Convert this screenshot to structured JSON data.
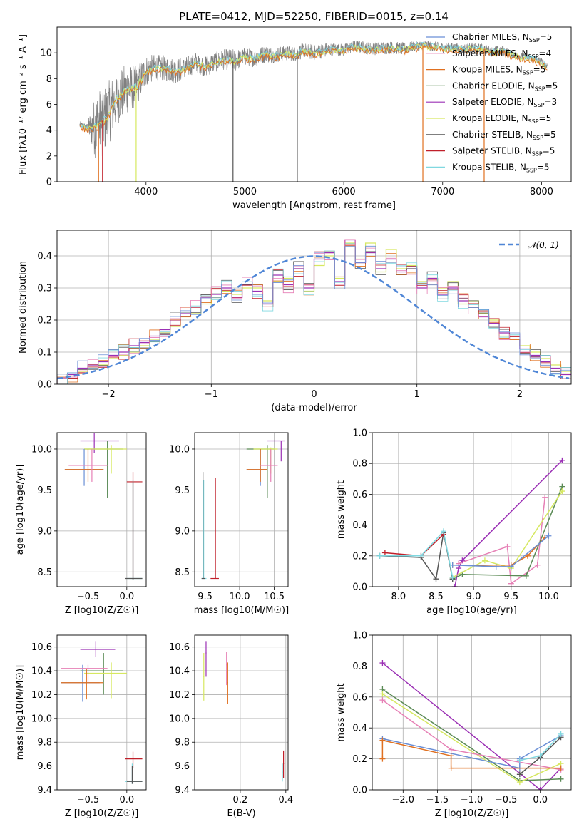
{
  "title": "PLATE=0412, MJD=52250, FIBERID=0015, z=0.14",
  "colors": {
    "chabrier_miles": "#6a8fd6",
    "salpeter_miles": "#e67fb5",
    "kroupa_miles": "#e07020",
    "chabrier_elodie": "#5a8a55",
    "salpeter_elodie": "#9b30b5",
    "kroupa_elodie": "#d6e860",
    "chabrier_stelib": "#555555",
    "salpeter_stelib": "#c0202a",
    "kroupa_stelib": "#80d8e0",
    "data": "#808080",
    "normal": "#4f86d6",
    "grid": "#b0b0b0"
  },
  "chart_data": [
    {
      "type": "line",
      "id": "spectrum",
      "xlabel": "wavelength [Angstrom, rest frame]",
      "ylabel": "Flux [fλ10⁻¹⁷ erg cm⁻² s⁻¹ A⁻¹]",
      "xlim": [
        3100,
        8300
      ],
      "ylim": [
        0,
        12
      ],
      "xticks": [
        4000,
        5000,
        6000,
        7000,
        8000
      ],
      "yticks": [
        0,
        2,
        4,
        6,
        8,
        10
      ],
      "legend_position": "top-right",
      "legend": [
        {
          "label": "Chabrier MILES, N",
          "sub": "SSP",
          "tail": "=5",
          "color": "chabrier_miles"
        },
        {
          "label": "Salpeter MILES, N",
          "sub": "SSP",
          "tail": "=4",
          "color": "salpeter_miles"
        },
        {
          "label": "Kroupa MILES, N",
          "sub": "SSP",
          "tail": "=5",
          "color": "kroupa_miles"
        },
        {
          "label": "Chabrier ELODIE, N",
          "sub": "SSP",
          "tail": "=5",
          "color": "chabrier_elodie"
        },
        {
          "label": "Salpeter ELODIE, N",
          "sub": "SSP",
          "tail": "=3",
          "color": "salpeter_elodie"
        },
        {
          "label": "Kroupa ELODIE, N",
          "sub": "SSP",
          "tail": "=5",
          "color": "kroupa_elodie"
        },
        {
          "label": "Chabrier STELIB, N",
          "sub": "SSP",
          "tail": "=5",
          "color": "chabrier_stelib"
        },
        {
          "label": "Salpeter STELIB, N",
          "sub": "SSP",
          "tail": "=5",
          "color": "salpeter_stelib"
        },
        {
          "label": "Kroupa STELIB, N",
          "sub": "SSP",
          "tail": "=5",
          "color": "kroupa_stelib"
        }
      ],
      "data_curve": {
        "x": [
          3330,
          3400,
          3500,
          3600,
          3700,
          3800,
          3900,
          4000,
          4100,
          4200,
          4300,
          4400,
          4500,
          4600,
          4700,
          4800,
          4900,
          5000,
          5100,
          5200,
          5300,
          5400,
          5500,
          5600,
          5700,
          5800,
          5900,
          6000,
          6100,
          6200,
          6300,
          6400,
          6500,
          6600,
          6700,
          6800,
          6900,
          7000,
          7100,
          7200,
          7300,
          7400,
          7500,
          7600,
          7700,
          7800,
          7900,
          8000,
          8060
        ],
        "y": [
          4.4,
          4.2,
          4.3,
          5.0,
          6.5,
          7.2,
          7.4,
          8.6,
          8.9,
          8.8,
          8.6,
          8.8,
          9.3,
          9.0,
          9.3,
          9.5,
          9.4,
          9.7,
          9.6,
          9.9,
          9.8,
          10.0,
          9.9,
          10.2,
          10.0,
          10.2,
          10.3,
          10.2,
          10.5,
          10.4,
          10.3,
          10.4,
          10.4,
          10.3,
          10.5,
          10.6,
          10.5,
          10.4,
          10.4,
          10.3,
          10.4,
          10.3,
          10.1,
          10.2,
          9.9,
          9.7,
          9.6,
          9.3,
          9.0
        ],
        "noise_amplitude": [
          0.3,
          0.3,
          2.8,
          2.6,
          2.2,
          2.0,
          1.6,
          1.2,
          1.0,
          1.0,
          1.0,
          0.9,
          0.8,
          0.9,
          0.8,
          0.8,
          0.9,
          0.7,
          0.7,
          0.7,
          0.6,
          0.6,
          0.6,
          0.6,
          0.6,
          0.6,
          0.5,
          0.5,
          0.5,
          0.5,
          0.5,
          0.5,
          0.5,
          0.5,
          0.4,
          0.4,
          0.4,
          0.4,
          0.4,
          0.4,
          0.4,
          0.4,
          0.4,
          0.4,
          0.3,
          0.3,
          0.3,
          0.3,
          0.3
        ]
      }
    },
    {
      "type": "bar",
      "id": "residuals",
      "xlabel": "(data-model)/error",
      "ylabel": "Normed distribution",
      "xlim": [
        -2.5,
        2.5
      ],
      "ylim": [
        0,
        0.48
      ],
      "xticks": [
        -2,
        -1,
        0,
        1,
        2
      ],
      "yticks": [
        0.0,
        0.1,
        0.2,
        0.3,
        0.4
      ],
      "bin_width": 0.1,
      "grid": true,
      "legend_position": "top-right",
      "legend_label": "𝒩(0, 1)",
      "series": [
        {
          "color": "kroupa_elodie",
          "values": [
            0.02,
            0.03,
            0.04,
            0.05,
            0.06,
            0.08,
            0.09,
            0.1,
            0.12,
            0.14,
            0.16,
            0.18,
            0.21,
            0.22,
            0.25,
            0.27,
            0.29,
            0.28,
            0.3,
            0.3,
            0.26,
            0.32,
            0.33,
            0.36,
            0.29,
            0.37,
            0.4,
            0.33,
            0.44,
            0.39,
            0.44,
            0.35,
            0.42,
            0.36,
            0.37,
            0.32,
            0.33,
            0.3,
            0.32,
            0.25,
            0.26,
            0.22,
            0.2,
            0.15,
            0.14,
            0.12,
            0.1,
            0.08,
            0.06,
            0.04
          ]
        },
        {
          "color": "salpeter_elodie",
          "values": [
            0.02,
            0.03,
            0.05,
            0.06,
            0.07,
            0.09,
            0.1,
            0.12,
            0.13,
            0.15,
            0.17,
            0.2,
            0.22,
            0.24,
            0.27,
            0.28,
            0.3,
            0.27,
            0.31,
            0.29,
            0.25,
            0.34,
            0.31,
            0.36,
            0.3,
            0.39,
            0.41,
            0.32,
            0.45,
            0.38,
            0.41,
            0.36,
            0.39,
            0.35,
            0.36,
            0.3,
            0.33,
            0.28,
            0.3,
            0.26,
            0.24,
            0.21,
            0.19,
            0.16,
            0.14,
            0.11,
            0.09,
            0.07,
            0.05,
            0.03
          ]
        }
      ],
      "normal_curve": {
        "mean": 0,
        "sigma": 1
      }
    },
    {
      "type": "scatter",
      "id": "age-vs-z",
      "xlabel": "Z [log10(Z/Z☉)]",
      "ylabel": "age [log10(age/yr)]",
      "xlim": [
        -0.9,
        0.25
      ],
      "ylim": [
        8.32,
        10.2
      ],
      "xticks": [
        -0.5,
        0.0
      ],
      "yticks": [
        8.5,
        9.0,
        9.5,
        10.0
      ]
    },
    {
      "type": "scatter",
      "id": "age-vs-mass",
      "xlabel": "mass [log10(M/M☉)]",
      "ylabel": "",
      "xlim": [
        9.35,
        10.7
      ],
      "ylim": [
        8.32,
        10.2
      ],
      "xticks": [
        9.5,
        10.0,
        10.5
      ],
      "yticks": [
        8.5,
        9.0,
        9.5,
        10.0
      ]
    },
    {
      "type": "line",
      "id": "massweight-vs-age",
      "xlabel": "age [log10(age/yr)]",
      "ylabel": "mass weight",
      "xlim": [
        7.65,
        10.3
      ],
      "ylim": [
        0.0,
        1.0
      ],
      "xticks": [
        8.0,
        8.5,
        9.0,
        9.5,
        10.0
      ],
      "yticks": [
        0.0,
        0.2,
        0.4,
        0.6,
        0.8,
        1.0
      ],
      "grid": true,
      "series": [
        {
          "color": "salpeter_elodie",
          "x": [
            8.75,
            8.8,
            8.85,
            10.18
          ],
          "y": [
            0.0,
            0.12,
            0.17,
            0.82
          ]
        },
        {
          "color": "salpeter_miles",
          "x": [
            8.8,
            9.45,
            9.5,
            9.85,
            9.95
          ],
          "y": [
            0.15,
            0.26,
            0.02,
            0.14,
            0.58
          ]
        },
        {
          "color": "chabrier_elodie",
          "x": [
            8.72,
            8.85,
            9.7,
            10.18
          ],
          "y": [
            0.05,
            0.08,
            0.07,
            0.65
          ]
        },
        {
          "color": "kroupa_elodie",
          "x": [
            8.72,
            9.15,
            9.5,
            10.18
          ],
          "y": [
            0.06,
            0.17,
            0.12,
            0.62
          ]
        },
        {
          "color": "kroupa_miles",
          "x": [
            8.72,
            9.5,
            9.72,
            9.95
          ],
          "y": [
            0.14,
            0.14,
            0.2,
            0.32
          ]
        },
        {
          "color": "chabrier_miles",
          "x": [
            8.72,
            9.3,
            9.5,
            10.0
          ],
          "y": [
            0.14,
            0.13,
            0.13,
            0.33
          ]
        },
        {
          "color": "chabrier_stelib",
          "x": [
            7.75,
            8.3,
            8.5,
            8.6,
            8.72
          ],
          "y": [
            0.2,
            0.19,
            0.05,
            0.35,
            0.05
          ]
        },
        {
          "color": "salpeter_stelib",
          "x": [
            7.82,
            8.3,
            8.6
          ],
          "y": [
            0.22,
            0.2,
            0.34
          ]
        },
        {
          "color": "kroupa_stelib",
          "x": [
            7.75,
            8.3,
            8.6,
            8.72
          ],
          "y": [
            0.2,
            0.2,
            0.36,
            0.06
          ]
        }
      ]
    },
    {
      "type": "scatter",
      "id": "mass-vs-z",
      "xlabel": "Z [log10(Z/Z☉)]",
      "ylabel": "mass [log10(M/M☉)]",
      "xlim": [
        -0.9,
        0.25
      ],
      "ylim": [
        9.4,
        10.7
      ],
      "xticks": [
        -0.5,
        0.0
      ],
      "yticks": [
        9.4,
        9.6,
        9.8,
        10.0,
        10.2,
        10.4,
        10.6
      ]
    },
    {
      "type": "scatter",
      "id": "mass-vs-ebv",
      "xlabel": "E(B-V)",
      "ylabel": "",
      "xlim": [
        0.0,
        0.41
      ],
      "ylim": [
        9.4,
        10.7
      ],
      "xticks": [
        0.2,
        0.4
      ],
      "yticks": [
        9.4,
        9.6,
        9.8,
        10.0,
        10.2,
        10.4,
        10.6
      ]
    },
    {
      "type": "line",
      "id": "massweight-vs-z",
      "xlabel": "Z [log10(Z/Z☉)]",
      "ylabel": "mass weight",
      "xlim": [
        -2.45,
        0.45
      ],
      "ylim": [
        0.0,
        1.0
      ],
      "xticks": [
        -2.0,
        -1.5,
        -1.0,
        -0.5,
        0.0
      ],
      "yticks": [
        0.0,
        0.2,
        0.4,
        0.6,
        0.8,
        1.0
      ],
      "grid": true,
      "series": [
        {
          "color": "salpeter_elodie",
          "x": [
            -2.3,
            0.0,
            0.3
          ],
          "y": [
            0.82,
            0.0,
            0.14
          ]
        },
        {
          "color": "chabrier_elodie",
          "x": [
            -2.3,
            -0.3,
            0.3
          ],
          "y": [
            0.65,
            0.06,
            0.07
          ]
        },
        {
          "color": "kroupa_elodie",
          "x": [
            -2.3,
            -0.3,
            0.3
          ],
          "y": [
            0.62,
            0.05,
            0.17
          ]
        },
        {
          "color": "salpeter_miles",
          "x": [
            -2.3,
            -1.3,
            0.3
          ],
          "y": [
            0.58,
            0.26,
            0.13
          ]
        },
        {
          "color": "chabrier_miles",
          "x": [
            -2.3,
            -0.3,
            -0.3,
            0.3
          ],
          "y": [
            0.33,
            0.14,
            0.2,
            0.35
          ]
        },
        {
          "color": "kroupa_miles",
          "x": [
            -2.3,
            -2.3,
            -1.3,
            -1.3,
            0.3
          ],
          "y": [
            0.2,
            0.32,
            0.22,
            0.14,
            0.14
          ]
        },
        {
          "color": "chabrier_stelib",
          "x": [
            -0.3,
            0.0,
            0.3
          ],
          "y": [
            0.1,
            0.21,
            0.34
          ]
        },
        {
          "color": "kroupa_stelib",
          "x": [
            -0.3,
            0.0,
            0.3
          ],
          "y": [
            0.19,
            0.22,
            0.36
          ]
        }
      ]
    }
  ]
}
